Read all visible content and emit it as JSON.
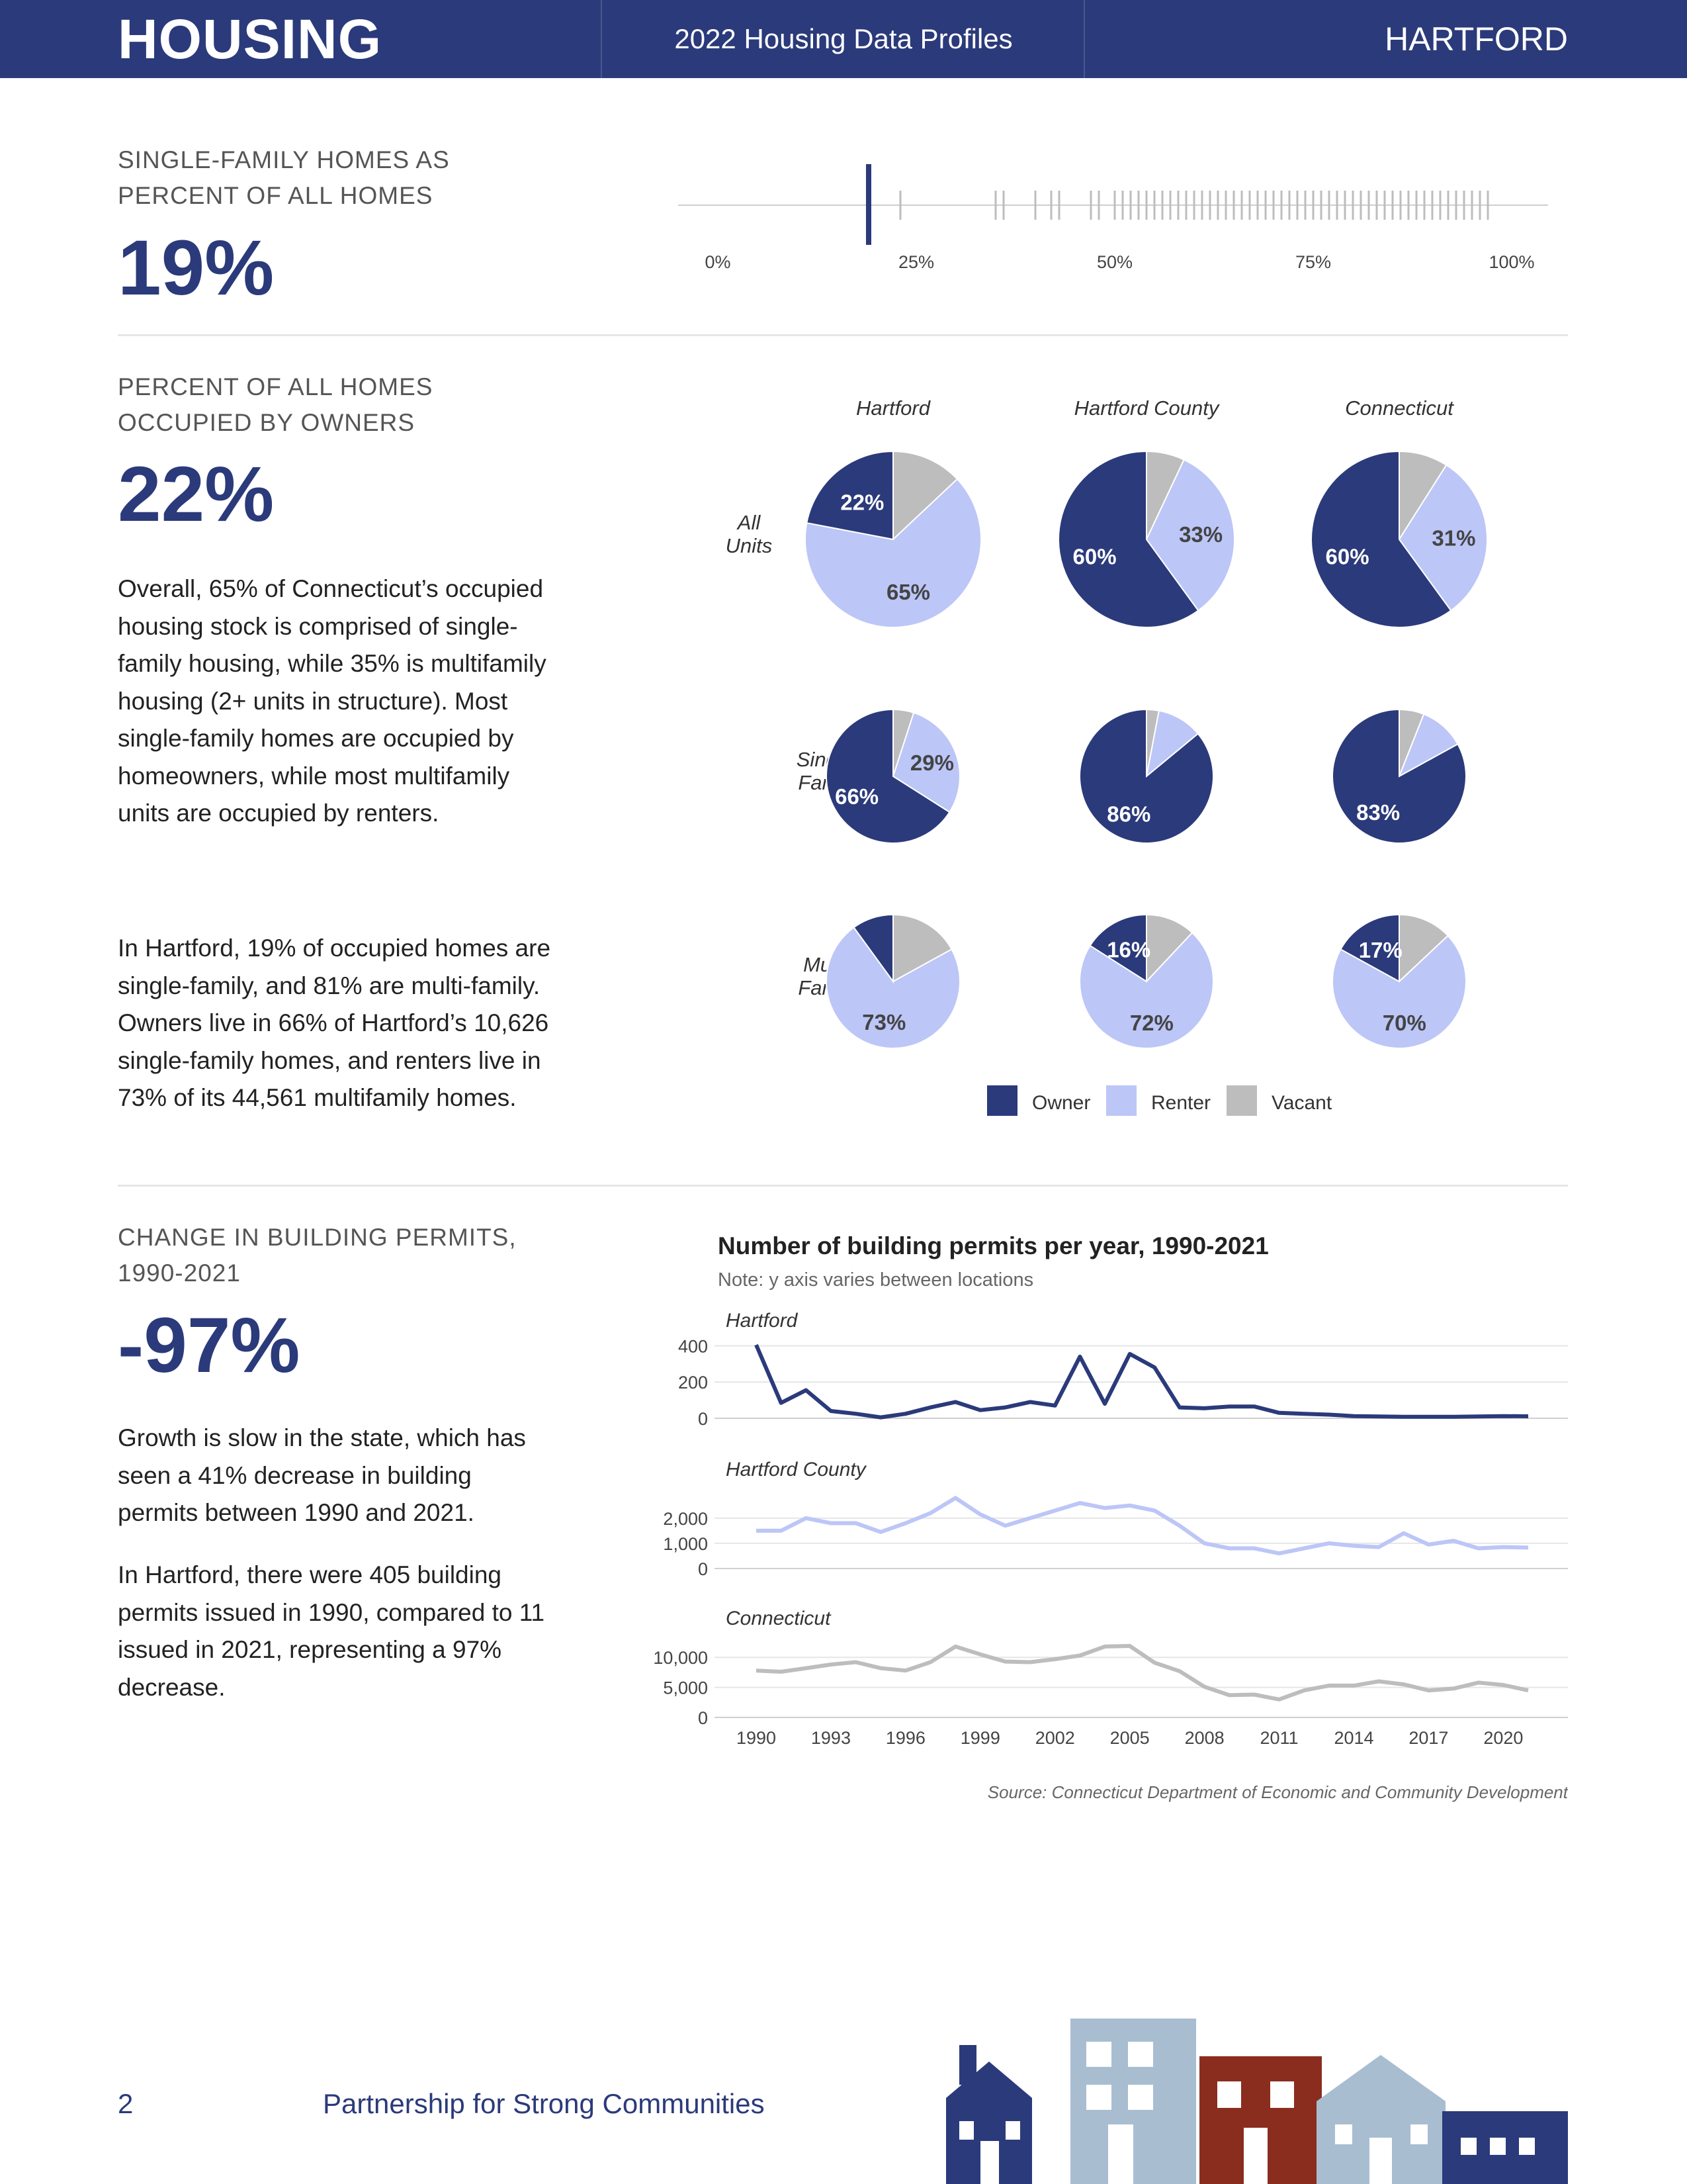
{
  "header": {
    "section": "HOUSING",
    "report": "2022 Housing Data Profiles",
    "town": "HARTFORD"
  },
  "colors": {
    "navy": "#2b3a7a",
    "renter": "#bcc6f7",
    "vacant": "#bdbdbd",
    "county_line": "#bcc6f7",
    "state_line": "#bdbdbd"
  },
  "single_family": {
    "label_line1": "SINGLE-FAMILY HOMES AS",
    "label_line2": "PERCENT OF ALL HOMES",
    "value": "19%",
    "strip": {
      "highlight": 19,
      "ticks": [
        "0%",
        "25%",
        "50%",
        "75%",
        "100%"
      ],
      "others": [
        23,
        35,
        36,
        40,
        42,
        43,
        47,
        48,
        50,
        51,
        52,
        53,
        54,
        55,
        56,
        57,
        58,
        59,
        60,
        61,
        62,
        63,
        64,
        65,
        66,
        67,
        68,
        69,
        70,
        71,
        72,
        73,
        74,
        75,
        76,
        77,
        78,
        79,
        80,
        81,
        82,
        83,
        84,
        85,
        86,
        87,
        88,
        89,
        90,
        91,
        92,
        93,
        94,
        95,
        96,
        97
      ]
    }
  },
  "owner_occupied": {
    "label_line1": "PERCENT OF ALL HOMES",
    "label_line2": "OCCUPIED BY OWNERS",
    "value": "22%",
    "paragraph1": "Overall, 65% of Connecticut’s occupied housing stock is comprised of single-family housing, while 35% is multifamily housing (2+ units in structure). Most single-family homes are occupied by homeowners, while most multifamily units are occupied by renters.",
    "paragraph2": "In Hartford, 19% of occupied homes are single-family, and 81% are multi-family. Owners live in 66% of Hartford’s 10,626 single-family homes, and renters live in 73% of its 44,561 multifamily homes."
  },
  "pies": {
    "columns": [
      "Hartford",
      "Hartford County",
      "Connecticut"
    ],
    "rows": [
      {
        "line1": "All",
        "line2": "Units"
      },
      {
        "line1": "Single-",
        "line2": "Family"
      },
      {
        "line1": "Multi-",
        "line2": "Family"
      }
    ],
    "data": [
      [
        {
          "owner": 22,
          "renter": 65,
          "vacant": 13,
          "owner_label": "22%",
          "renter_label": "65%"
        },
        {
          "owner": 60,
          "renter": 33,
          "vacant": 7,
          "owner_label": "60%",
          "renter_label": "33%"
        },
        {
          "owner": 60,
          "renter": 31,
          "vacant": 9,
          "owner_label": "60%",
          "renter_label": "31%"
        }
      ],
      [
        {
          "owner": 66,
          "renter": 29,
          "vacant": 5,
          "owner_label": "66%",
          "renter_label": "29%"
        },
        {
          "owner": 86,
          "renter": 11,
          "vacant": 3,
          "owner_label": "86%",
          "renter_label": ""
        },
        {
          "owner": 83,
          "renter": 11,
          "vacant": 6,
          "owner_label": "83%",
          "renter_label": ""
        }
      ],
      [
        {
          "owner": 10,
          "renter": 73,
          "vacant": 17,
          "owner_label": "",
          "renter_label": "73%"
        },
        {
          "owner": 16,
          "renter": 72,
          "vacant": 12,
          "owner_label": "16%",
          "renter_label": "72%"
        },
        {
          "owner": 17,
          "renter": 70,
          "vacant": 13,
          "owner_label": "17%",
          "renter_label": "70%"
        }
      ]
    ],
    "legend": [
      "Owner",
      "Renter",
      "Vacant"
    ]
  },
  "permits": {
    "label_line1": "CHANGE IN BUILDING PERMITS,",
    "label_line2": "1990-2021",
    "value": "-97%",
    "paragraph1": "Growth is slow in the state, which has seen a 41% decrease in building permits between 1990 and 2021.",
    "paragraph2": "In Hartford, there were 405 building permits issued in 1990, compared to 11 issued in 2021, representing a 97% decrease."
  },
  "chart_data": {
    "type": "line",
    "title": "Number of building permits per year, 1990-2021",
    "subtitle": "Note: y axis varies between locations",
    "x": [
      1990,
      1991,
      1992,
      1993,
      1994,
      1995,
      1996,
      1997,
      1998,
      1999,
      2000,
      2001,
      2002,
      2003,
      2004,
      2005,
      2006,
      2007,
      2008,
      2009,
      2010,
      2011,
      2012,
      2013,
      2014,
      2015,
      2016,
      2017,
      2018,
      2019,
      2020,
      2021
    ],
    "x_ticks": [
      "1990",
      "1993",
      "1996",
      "1999",
      "2002",
      "2005",
      "2008",
      "2011",
      "2014",
      "2017",
      "2020"
    ],
    "panels": [
      {
        "name": "Hartford",
        "ylim": [
          0,
          420
        ],
        "y_ticks": [
          "400",
          "200",
          "0"
        ],
        "y_tick_values": [
          400,
          200,
          0
        ],
        "values": [
          405,
          85,
          155,
          40,
          25,
          5,
          25,
          60,
          90,
          45,
          60,
          90,
          70,
          340,
          80,
          355,
          280,
          60,
          55,
          65,
          65,
          30,
          25,
          20,
          12,
          10,
          8,
          8,
          8,
          10,
          12,
          11
        ]
      },
      {
        "name": "Hartford County",
        "ylim": [
          0,
          3100
        ],
        "y_ticks": [
          "2,000",
          "1,000",
          "0"
        ],
        "y_tick_values": [
          2000,
          1000,
          0
        ],
        "values": [
          1500,
          1500,
          2000,
          1800,
          1800,
          1450,
          1800,
          2200,
          2800,
          2150,
          1700,
          2000,
          2300,
          2600,
          2400,
          2500,
          2300,
          1700,
          1000,
          800,
          800,
          600,
          800,
          1000,
          900,
          850,
          1400,
          950,
          1100,
          800,
          850,
          830
        ]
      },
      {
        "name": "Connecticut",
        "ylim": [
          0,
          13000
        ],
        "y_ticks": [
          "10,000",
          "5,000",
          "0"
        ],
        "y_tick_values": [
          10000,
          5000,
          0
        ],
        "values": [
          7800,
          7600,
          8200,
          8800,
          9200,
          8200,
          7800,
          9200,
          11800,
          10500,
          9300,
          9200,
          9700,
          10300,
          11800,
          11900,
          9100,
          7700,
          5100,
          3700,
          3800,
          3000,
          4500,
          5300,
          5300,
          6000,
          5500,
          4500,
          4800,
          5800,
          5400,
          4500
        ]
      }
    ],
    "source": "Source: Connecticut Department of Economic and Community Development"
  },
  "footer": {
    "page": "2",
    "org": "Partnership for Strong Communities",
    "colors": {
      "navy": "#2b3a7a",
      "light_blue": "#a9bdd1",
      "red": "#8a2d1f"
    }
  }
}
